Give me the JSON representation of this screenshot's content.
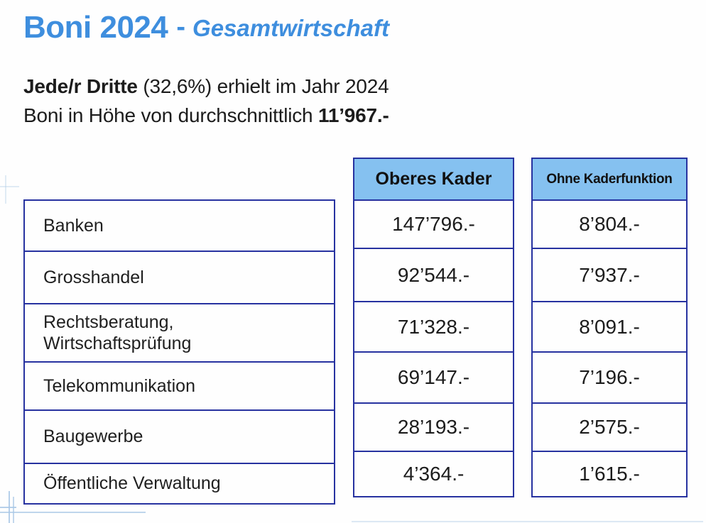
{
  "title": {
    "main": "Boni 2024",
    "separator": "-",
    "subtitle": "Gesamtwirtschaft"
  },
  "intro": {
    "line1_bold": "Jede/r Dritte",
    "line1_rest": " (32,6%) erhielt im Jahr 2024",
    "line2_prefix": "Boni in Höhe von durchschnittlich ",
    "line2_bold": "11’967.-"
  },
  "table": {
    "column_headers": {
      "oberes_kader": "Oberes Kader",
      "ohne_kaderfunktion": "Ohne Kaderfunktion"
    },
    "rows": [
      {
        "label": "Banken",
        "oberes_kader": "147’796.-",
        "ohne_kaderfunktion": "8’804.-"
      },
      {
        "label": "Grosshandel",
        "oberes_kader": "92’544.-",
        "ohne_kaderfunktion": "7’937.-"
      },
      {
        "label": "Rechtsberatung,\nWirtschaftsprüfung",
        "oberes_kader": "71’328.-",
        "ohne_kaderfunktion": "8’091.-"
      },
      {
        "label": "Telekommunikation",
        "oberes_kader": "69’147.-",
        "ohne_kaderfunktion": "7’196.-"
      },
      {
        "label": "Baugewerbe",
        "oberes_kader": "28’193.-",
        "ohne_kaderfunktion": "2’575.-"
      },
      {
        "label": "Öffentliche Verwaltung",
        "oberes_kader": "4’364.-",
        "ohne_kaderfunktion": "1’615.-"
      }
    ]
  },
  "colors": {
    "title_blue": "#3e8ede",
    "table_border": "#2732a0",
    "header_fill": "#85c1f0",
    "body_text": "#1c1c1c",
    "guide_line": "#a9c8e6"
  }
}
